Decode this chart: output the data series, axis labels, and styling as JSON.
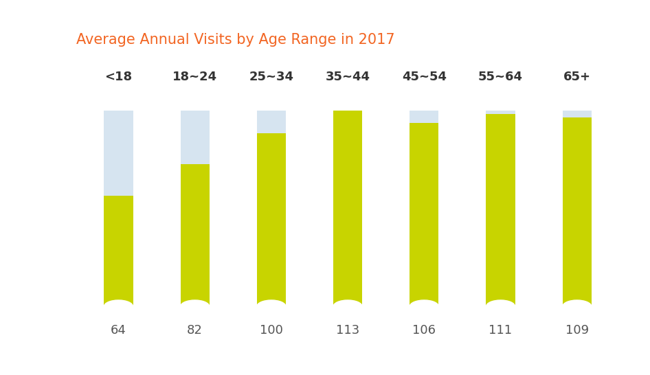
{
  "title": "Average Annual Visits by Age Range in 2017",
  "title_color": "#F26522",
  "categories": [
    "<18",
    "18~24",
    "25~34",
    "35~44",
    "45~54",
    "55~64",
    "65+"
  ],
  "values": [
    64,
    82,
    100,
    113,
    106,
    111,
    109
  ],
  "max_value": 113,
  "bar_color": "#C8D400",
  "bg_color": "#D6E4F0",
  "background": "#FFFFFF",
  "value_label_color": "#555555",
  "category_label_color": "#333333",
  "bar_width": 0.38,
  "figsize": [
    9.46,
    5.46
  ],
  "dpi": 100,
  "title_fontsize": 15,
  "label_fontsize": 13,
  "value_fontsize": 13
}
